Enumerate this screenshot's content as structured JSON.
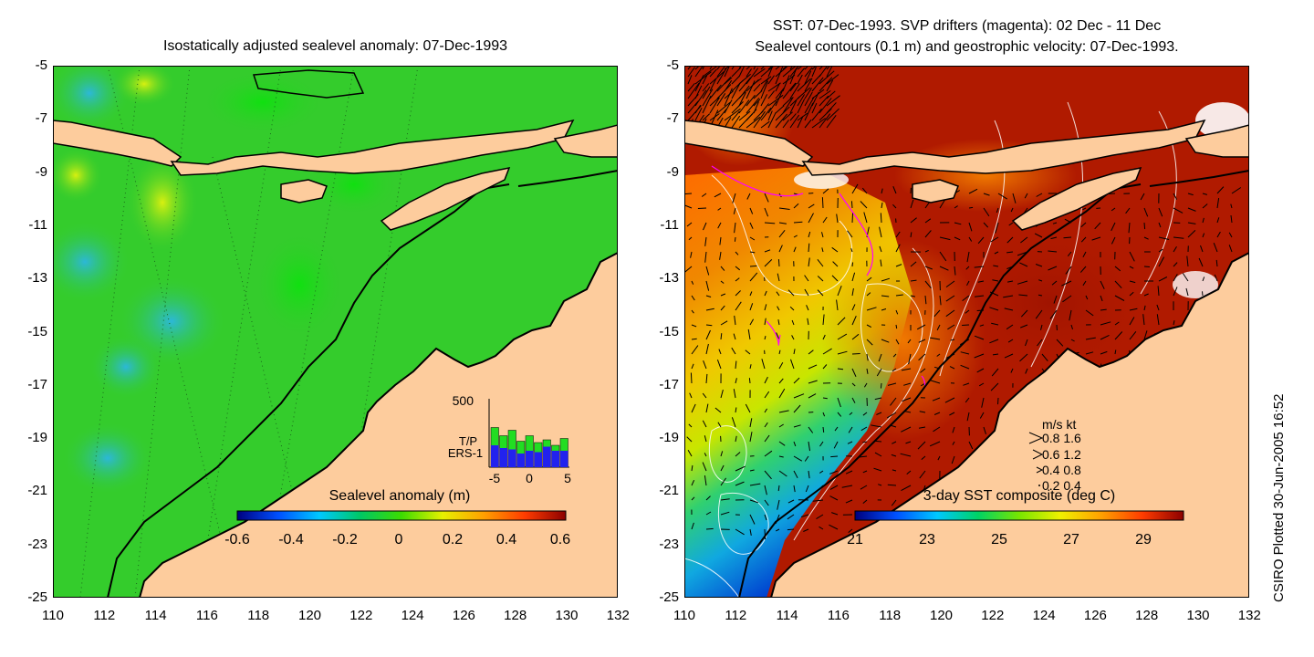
{
  "left_panel": {
    "title": "Isostatically adjusted sealevel anomaly: 07-Dec-1993",
    "colorbar": {
      "label": "Sealevel anomaly (m)",
      "ticks": [
        "-0.6",
        "-0.4",
        "-0.2",
        "0",
        "0.2",
        "0.4",
        "0.6"
      ],
      "stops": [
        "#00007f",
        "#0050ff",
        "#00c8ff",
        "#00c864",
        "#3cdc00",
        "#e6f000",
        "#ffa000",
        "#ff3c00",
        "#8c0000"
      ]
    },
    "inset": {
      "ymax_label": "500",
      "legend_tp": "T/P",
      "legend_ers": "ERS-1",
      "x_ticks": [
        "-5",
        "0",
        "5"
      ],
      "tp_values": [
        290,
        230,
        270,
        190,
        230,
        180,
        200,
        160,
        210
      ],
      "ers_values": [
        160,
        140,
        130,
        100,
        120,
        110,
        150,
        120,
        120
      ],
      "tp_color": "#22dd22",
      "ers_color": "#2222ee"
    }
  },
  "right_panel": {
    "title_line1": "SST: 07-Dec-1993. SVP drifters (magenta): 02 Dec - 11 Dec",
    "title_line2": "Sealevel contours (0.1 m) and geostrophic velocity: 07-Dec-1993.",
    "colorbar": {
      "label": "3-day SST composite (deg C)",
      "ticks": [
        "21",
        "23",
        "25",
        "27",
        "29"
      ],
      "stops": [
        "#00007f",
        "#0050ff",
        "#00c8ff",
        "#00d264",
        "#78e600",
        "#f0f000",
        "#ffa000",
        "#ff3c00",
        "#8c0000"
      ]
    },
    "velocity_legend": {
      "header": "m/s  kt",
      "rows": [
        "0.8  1.6",
        "0.6  1.2",
        "0.4  0.8",
        "0.2  0.4"
      ]
    }
  },
  "axes": {
    "lat_ticks": [
      "-5",
      "-7",
      "-9",
      "-11",
      "-13",
      "-15",
      "-17",
      "-19",
      "-21",
      "-23",
      "-25"
    ],
    "lon_ticks": [
      "110",
      "112",
      "114",
      "116",
      "118",
      "120",
      "122",
      "124",
      "126",
      "128",
      "130",
      "132"
    ]
  },
  "credit": "CSIRO Plotted 30-Jun-2005 16:52",
  "colors": {
    "land": "#fdcc9d",
    "ocean_left": "#34cc2c",
    "ocean_right": "#b01a00"
  }
}
